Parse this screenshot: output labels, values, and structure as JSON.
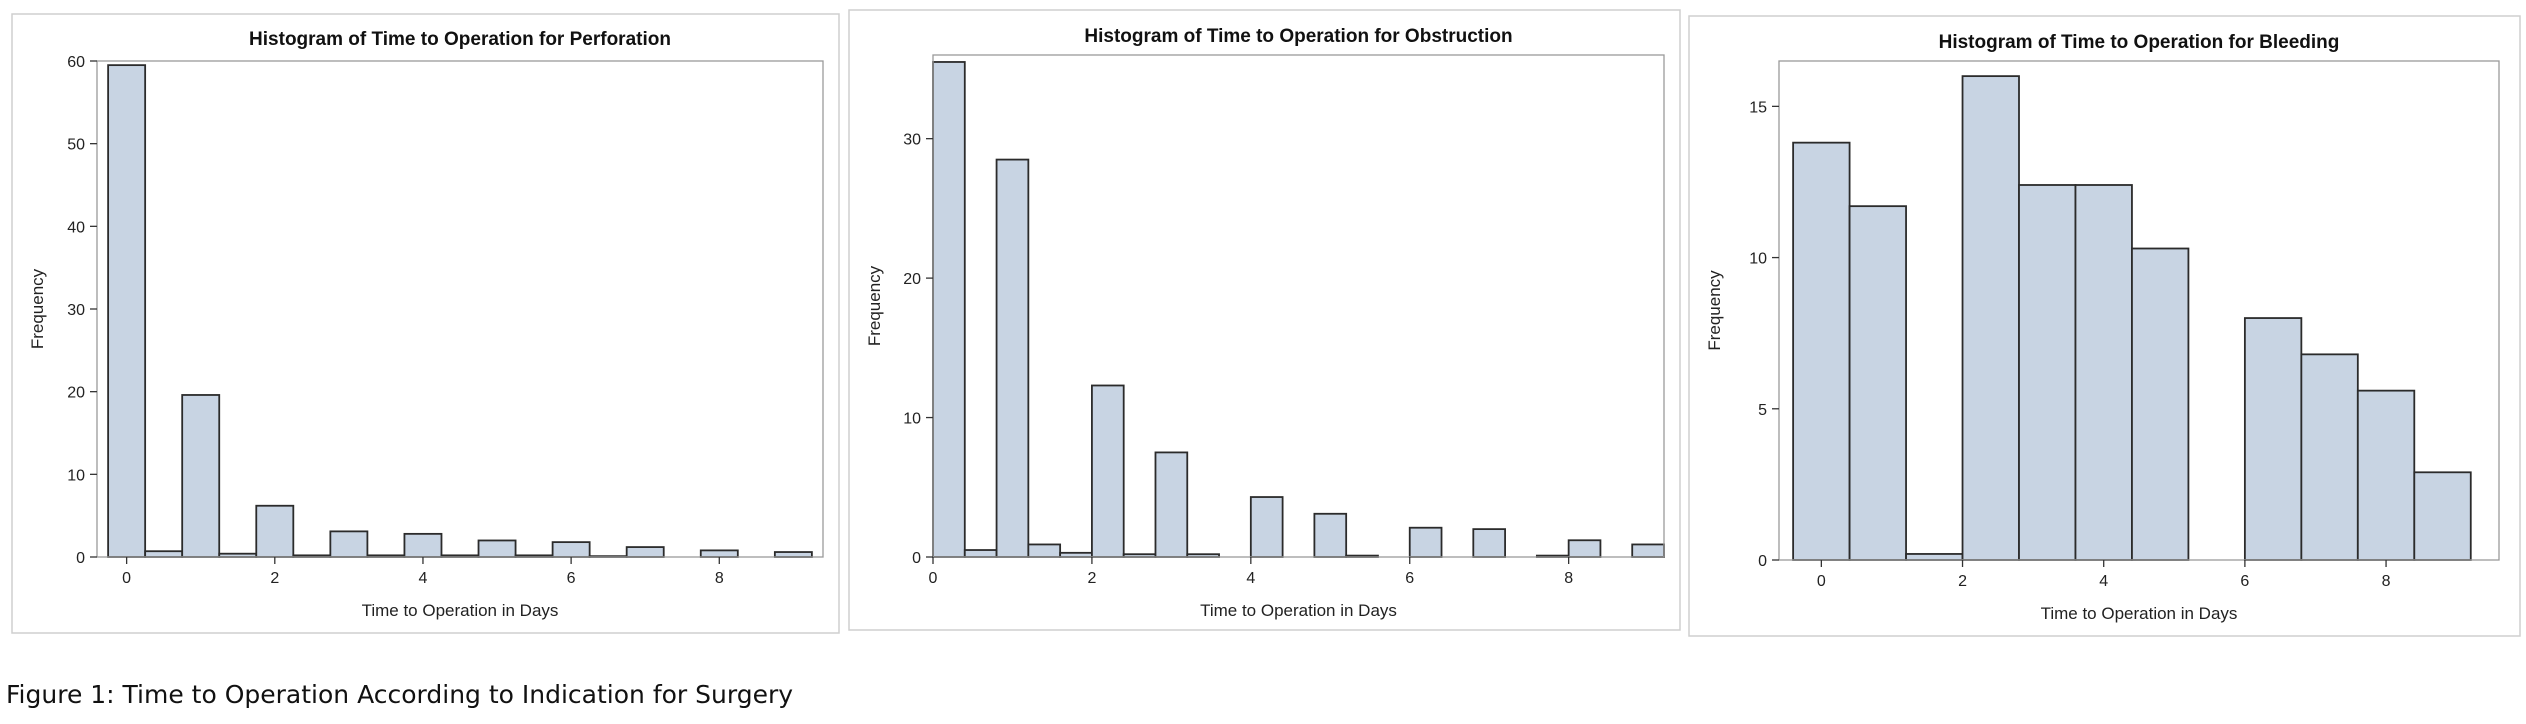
{
  "caption": "Figure 1: Time to Operation According to Indication for Surgery",
  "chart_data": [
    {
      "type": "bar",
      "title": "Histogram of Time to Operation for Perforation",
      "xlabel": "Time to Operation in Days",
      "ylabel": "Frequency",
      "xlim": [
        -0.4,
        9.4
      ],
      "ylim": [
        0,
        60
      ],
      "xticks": [
        "0",
        "2",
        "4",
        "6",
        "8"
      ],
      "yticks": [
        "0",
        "10",
        "20",
        "30",
        "40",
        "50",
        "60"
      ],
      "bin_width": 0.5,
      "bin_starts": [
        -0.25,
        0.25,
        0.75,
        1.25,
        1.75,
        2.25,
        2.75,
        3.25,
        3.75,
        4.25,
        4.75,
        5.25,
        5.75,
        6.25,
        6.75,
        7.25,
        7.75,
        8.25,
        8.75
      ],
      "values": [
        59.5,
        0.7,
        19.6,
        0.4,
        6.2,
        0.2,
        3.1,
        0.2,
        2.8,
        0.2,
        2.0,
        0.2,
        1.8,
        0.1,
        1.2,
        0.0,
        0.8,
        0.0,
        0.6
      ],
      "color": "#c8d4e3",
      "edge_color": "#2b2b2b",
      "grid": false
    },
    {
      "type": "bar",
      "title": "Histogram of Time to Operation for Obstruction",
      "xlabel": "Time to Operation in Days",
      "ylabel": "Frequency",
      "xlim": [
        0,
        9.2
      ],
      "ylim": [
        0,
        36
      ],
      "xticks": [
        "0",
        "2",
        "4",
        "6",
        "8"
      ],
      "yticks": [
        "0",
        "10",
        "20",
        "30"
      ],
      "bin_width": 0.4,
      "bin_starts": [
        0.0,
        0.4,
        0.8,
        1.2,
        1.6,
        2.0,
        2.4,
        2.8,
        3.2,
        3.6,
        4.0,
        4.4,
        4.8,
        5.2,
        5.6,
        6.0,
        6.4,
        6.8,
        7.2,
        7.6,
        8.0,
        8.4,
        8.8
      ],
      "values": [
        35.5,
        0.5,
        28.5,
        0.9,
        0.3,
        12.3,
        0.2,
        7.5,
        0.2,
        0.0,
        4.3,
        0.0,
        3.1,
        0.1,
        0.0,
        2.1,
        0.0,
        2.0,
        0.0,
        0.1,
        1.2,
        0.0,
        0.9
      ],
      "color": "#c8d4e3",
      "edge_color": "#2b2b2b",
      "grid": false
    },
    {
      "type": "bar",
      "title": "Histogram of Time to Operation for Bleeding",
      "xlabel": "Time to Operation in Days",
      "ylabel": "Frequency",
      "xlim": [
        -0.6,
        9.6
      ],
      "ylim": [
        0,
        16.5
      ],
      "xticks": [
        "0",
        "2",
        "4",
        "6",
        "8"
      ],
      "yticks": [
        "0",
        "5",
        "10",
        "15"
      ],
      "bin_width": 0.8,
      "bin_starts": [
        -0.4,
        0.4,
        1.2,
        2.0,
        2.8,
        3.6,
        4.4,
        5.2,
        6.0,
        6.8,
        7.6,
        8.4
      ],
      "values": [
        13.8,
        11.7,
        0.2,
        16.0,
        12.4,
        12.4,
        10.3,
        0.0,
        8.0,
        6.8,
        5.6,
        2.9
      ],
      "color": "#c8d4e3",
      "edge_color": "#2b2b2b",
      "grid": false
    }
  ]
}
